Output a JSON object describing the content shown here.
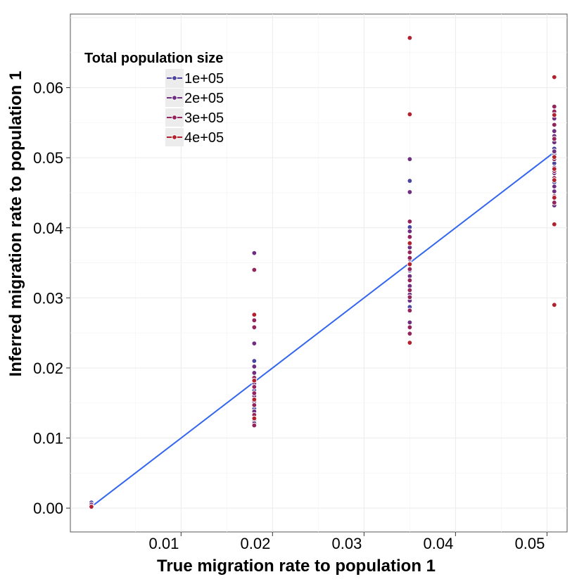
{
  "chart_data": {
    "type": "scatter",
    "title": "",
    "xlabel": "True migration rate to population 1",
    "ylabel": "Inferred migration rate to population 1",
    "xlim": [
      -0.0021,
      0.0522
    ],
    "ylim": [
      -0.0034,
      0.0705
    ],
    "xticks": [
      0.01,
      0.02,
      0.03,
      0.04,
      0.05
    ],
    "xtick_labels": [
      "0.01",
      "0.02",
      "0.03",
      "0.04",
      "0.05"
    ],
    "yticks": [
      0.0,
      0.01,
      0.02,
      0.03,
      0.04,
      0.05,
      0.06
    ],
    "ytick_labels": [
      "0.00",
      "0.01",
      "0.02",
      "0.03",
      "0.04",
      "0.05",
      "0.06"
    ],
    "grid": true,
    "legend": {
      "title": "Total population size",
      "position": "top-left",
      "entries": [
        {
          "label": "1e+05",
          "color": "#4b45a0"
        },
        {
          "label": "2e+05",
          "color": "#6f2f80"
        },
        {
          "label": "3e+05",
          "color": "#93245c"
        },
        {
          "label": "4e+05",
          "color": "#b3202e"
        }
      ]
    },
    "fit_line": {
      "color": "#3366ee",
      "x": [
        0.0002,
        0.0508
      ],
      "y": [
        0.0002,
        0.0508
      ]
    },
    "series": [
      {
        "name": "1e+05",
        "color": "#4b45a0",
        "points": [
          [
            0.0002,
            0.0008
          ],
          [
            0.0002,
            0.0004
          ],
          [
            0.018,
            0.021
          ],
          [
            0.018,
            0.0168
          ],
          [
            0.018,
            0.0142
          ],
          [
            0.018,
            0.0125
          ],
          [
            0.035,
            0.0467
          ],
          [
            0.035,
            0.0401
          ],
          [
            0.035,
            0.0348
          ],
          [
            0.035,
            0.0339
          ],
          [
            0.035,
            0.0287
          ],
          [
            0.0508,
            0.0513
          ],
          [
            0.0508,
            0.0505
          ],
          [
            0.0508,
            0.0492
          ],
          [
            0.0508,
            0.0465
          ]
        ]
      },
      {
        "name": "2e+05",
        "color": "#6f2f80",
        "points": [
          [
            0.0002,
            0.0005
          ],
          [
            0.0002,
            0.0002
          ],
          [
            0.018,
            0.0364
          ],
          [
            0.018,
            0.0235
          ],
          [
            0.018,
            0.0202
          ],
          [
            0.018,
            0.0193
          ],
          [
            0.018,
            0.0178
          ],
          [
            0.018,
            0.016
          ],
          [
            0.018,
            0.0152
          ],
          [
            0.018,
            0.0138
          ],
          [
            0.018,
            0.0121
          ],
          [
            0.035,
            0.0498
          ],
          [
            0.035,
            0.0451
          ],
          [
            0.035,
            0.0395
          ],
          [
            0.035,
            0.0372
          ],
          [
            0.035,
            0.0355
          ],
          [
            0.035,
            0.0331
          ],
          [
            0.035,
            0.0317
          ],
          [
            0.035,
            0.0305
          ],
          [
            0.035,
            0.0296
          ],
          [
            0.035,
            0.0265
          ],
          [
            0.0508,
            0.0556
          ],
          [
            0.0508,
            0.0538
          ],
          [
            0.0508,
            0.0531
          ],
          [
            0.0508,
            0.0522
          ],
          [
            0.0508,
            0.0509
          ],
          [
            0.0508,
            0.0486
          ],
          [
            0.0508,
            0.0478
          ],
          [
            0.0508,
            0.0459
          ],
          [
            0.0508,
            0.0452
          ],
          [
            0.0508,
            0.0432
          ]
        ]
      },
      {
        "name": "3e+05",
        "color": "#93245c",
        "points": [
          [
            0.0002,
            0.0001
          ],
          [
            0.018,
            0.034
          ],
          [
            0.018,
            0.0268
          ],
          [
            0.018,
            0.0258
          ],
          [
            0.018,
            0.0186
          ],
          [
            0.018,
            0.0173
          ],
          [
            0.018,
            0.0164
          ],
          [
            0.018,
            0.0147
          ],
          [
            0.018,
            0.0133
          ],
          [
            0.018,
            0.0118
          ],
          [
            0.035,
            0.0409
          ],
          [
            0.035,
            0.0387
          ],
          [
            0.035,
            0.0365
          ],
          [
            0.035,
            0.0357
          ],
          [
            0.035,
            0.0341
          ],
          [
            0.035,
            0.0325
          ],
          [
            0.035,
            0.0311
          ],
          [
            0.035,
            0.0301
          ],
          [
            0.035,
            0.0282
          ],
          [
            0.035,
            0.0258
          ],
          [
            0.035,
            0.0249
          ],
          [
            0.0508,
            0.0573
          ],
          [
            0.0508,
            0.0566
          ],
          [
            0.0508,
            0.0547
          ],
          [
            0.0508,
            0.0527
          ],
          [
            0.0508,
            0.0498
          ],
          [
            0.0508,
            0.0481
          ],
          [
            0.0508,
            0.0471
          ],
          [
            0.0508,
            0.0445
          ],
          [
            0.0508,
            0.0436
          ]
        ]
      },
      {
        "name": "4e+05",
        "color": "#b3202e",
        "points": [
          [
            0.0002,
            0.0002
          ],
          [
            0.018,
            0.0276
          ],
          [
            0.018,
            0.0182
          ],
          [
            0.018,
            0.0155
          ],
          [
            0.018,
            0.0128
          ],
          [
            0.035,
            0.0671
          ],
          [
            0.035,
            0.0562
          ],
          [
            0.035,
            0.0378
          ],
          [
            0.035,
            0.0348
          ],
          [
            0.035,
            0.0236
          ],
          [
            0.0508,
            0.0615
          ],
          [
            0.0508,
            0.0561
          ],
          [
            0.0508,
            0.0501
          ],
          [
            0.0508,
            0.0484
          ],
          [
            0.0508,
            0.0468
          ],
          [
            0.0508,
            0.0443
          ],
          [
            0.0508,
            0.0405
          ],
          [
            0.0508,
            0.029
          ]
        ]
      }
    ]
  }
}
